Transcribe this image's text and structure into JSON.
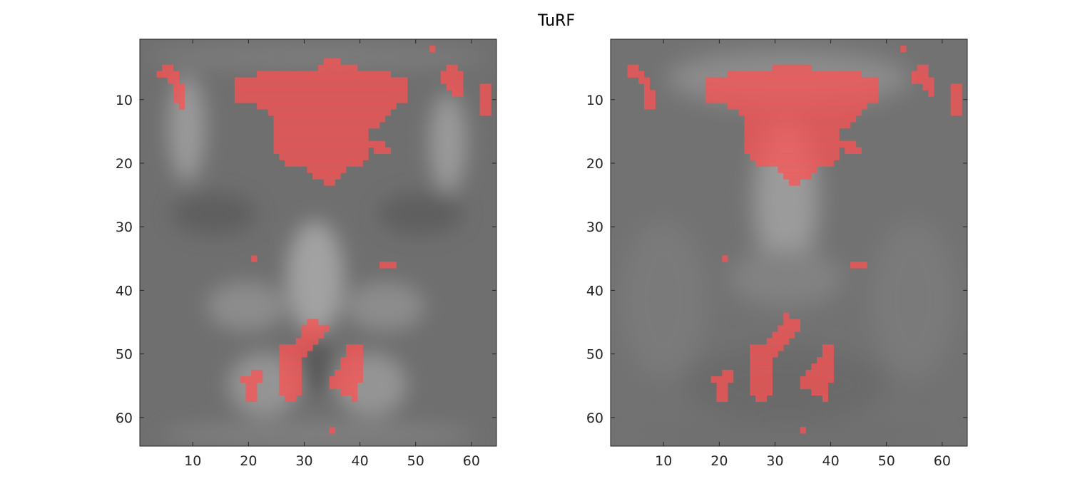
{
  "chart_data": {
    "title": "TuRF",
    "panels": [
      {
        "type": "heatmap",
        "xlim": [
          0.5,
          64.5
        ],
        "ylim": [
          0.5,
          64.5
        ],
        "xticks": [
          10,
          20,
          30,
          40,
          50,
          60
        ],
        "yticks": [
          10,
          20,
          30,
          40,
          50,
          60
        ],
        "y_direction": "reversed",
        "background": "grayscale anatomical slice",
        "overlay_color": "#ff5050",
        "overlay_regions": [
          {
            "name": "frontal",
            "rows": [
              [
                4,
                34,
                36
              ],
              [
                5,
                33,
                39
              ],
              [
                6,
                22,
                45
              ],
              [
                7,
                18,
                48
              ],
              [
                8,
                18,
                48
              ],
              [
                9,
                18,
                48
              ],
              [
                10,
                18,
                48
              ],
              [
                11,
                22,
                46
              ],
              [
                12,
                24,
                45
              ],
              [
                13,
                25,
                44
              ],
              [
                14,
                25,
                43
              ],
              [
                15,
                25,
                41
              ],
              [
                16,
                25,
                41
              ],
              [
                17,
                25,
                42
              ],
              [
                18,
                25,
                41
              ],
              [
                19,
                26,
                41
              ],
              [
                20,
                27,
                40
              ],
              [
                21,
                31,
                37
              ],
              [
                22,
                32,
                36
              ],
              [
                23,
                34,
                35
              ]
            ]
          },
          {
            "name": "top-left",
            "rows": [
              [
                5,
                5,
                6
              ],
              [
                6,
                4,
                7
              ],
              [
                7,
                6,
                7
              ],
              [
                8,
                7,
                8
              ],
              [
                9,
                7,
                8
              ],
              [
                10,
                7,
                8
              ],
              [
                11,
                8,
                8
              ]
            ]
          },
          {
            "name": "top-right",
            "rows": [
              [
                5,
                56,
                57
              ],
              [
                6,
                55,
                58
              ],
              [
                7,
                55,
                58
              ],
              [
                8,
                56,
                58
              ],
              [
                9,
                57,
                58
              ]
            ]
          },
          {
            "name": "right-edge",
            "rows": [
              [
                8,
                62,
                63
              ],
              [
                9,
                62,
                63
              ],
              [
                10,
                62,
                63
              ],
              [
                11,
                62,
                63
              ],
              [
                12,
                62,
                63
              ]
            ]
          },
          {
            "name": "top-dot",
            "rows": [
              [
                2,
                53,
                53
              ]
            ]
          },
          {
            "name": "side-blob",
            "rows": [
              [
                17,
                43,
                44
              ],
              [
                18,
                43,
                45
              ]
            ]
          },
          {
            "name": "mid-left-dot",
            "rows": [
              [
                35,
                21,
                21
              ]
            ]
          },
          {
            "name": "mid-right-dot",
            "rows": [
              [
                36,
                44,
                46
              ]
            ]
          },
          {
            "name": "occipital-left",
            "rows": [
              [
                45,
                31,
                32
              ],
              [
                46,
                30,
                34
              ],
              [
                47,
                30,
                33
              ],
              [
                48,
                29,
                32
              ],
              [
                49,
                26,
                31
              ],
              [
                50,
                26,
                30
              ],
              [
                51,
                26,
                29
              ],
              [
                52,
                26,
                29
              ],
              [
                53,
                26,
                29
              ],
              [
                54,
                26,
                29
              ],
              [
                55,
                26,
                29
              ],
              [
                56,
                26,
                29
              ],
              [
                57,
                27,
                28
              ]
            ]
          },
          {
            "name": "occipital-right",
            "rows": [
              [
                49,
                38,
                40
              ],
              [
                50,
                38,
                40
              ],
              [
                51,
                37,
                40
              ],
              [
                52,
                37,
                40
              ],
              [
                53,
                36,
                40
              ],
              [
                54,
                35,
                40
              ],
              [
                55,
                35,
                39
              ],
              [
                56,
                37,
                39
              ],
              [
                57,
                39,
                39
              ]
            ]
          },
          {
            "name": "lower-left",
            "rows": [
              [
                53,
                21,
                22
              ],
              [
                54,
                19,
                22
              ],
              [
                55,
                20,
                21
              ],
              [
                56,
                20,
                21
              ],
              [
                57,
                20,
                21
              ]
            ]
          },
          {
            "name": "bottom-dot",
            "rows": [
              [
                62,
                35,
                35
              ]
            ]
          }
        ]
      },
      {
        "type": "heatmap",
        "xlim": [
          0.5,
          64.5
        ],
        "ylim": [
          0.5,
          64.5
        ],
        "xticks": [
          10,
          20,
          30,
          40,
          50,
          60
        ],
        "yticks": [
          10,
          20,
          30,
          40,
          50,
          60
        ],
        "y_direction": "reversed",
        "background": "grayscale anatomical slice",
        "overlay_color": "#ff5050",
        "overlay_regions": [
          {
            "name": "frontal",
            "rows": [
              [
                5,
                30,
                36
              ],
              [
                6,
                22,
                45
              ],
              [
                7,
                18,
                48
              ],
              [
                8,
                18,
                48
              ],
              [
                9,
                18,
                48
              ],
              [
                10,
                18,
                48
              ],
              [
                11,
                22,
                46
              ],
              [
                12,
                24,
                45
              ],
              [
                13,
                25,
                44
              ],
              [
                14,
                25,
                43
              ],
              [
                15,
                25,
                41
              ],
              [
                16,
                25,
                41
              ],
              [
                17,
                25,
                42
              ],
              [
                18,
                25,
                41
              ],
              [
                19,
                26,
                41
              ],
              [
                20,
                27,
                40
              ],
              [
                21,
                31,
                37
              ],
              [
                22,
                32,
                36
              ],
              [
                23,
                33,
                34
              ]
            ]
          },
          {
            "name": "top-left",
            "rows": [
              [
                5,
                4,
                5
              ],
              [
                6,
                4,
                6
              ],
              [
                7,
                6,
                7
              ],
              [
                8,
                7,
                7
              ],
              [
                9,
                7,
                8
              ],
              [
                10,
                7,
                8
              ],
              [
                11,
                7,
                8
              ]
            ]
          },
          {
            "name": "top-right",
            "rows": [
              [
                5,
                56,
                57
              ],
              [
                6,
                55,
                57
              ],
              [
                7,
                55,
                58
              ],
              [
                8,
                57,
                58
              ],
              [
                9,
                58,
                58
              ]
            ]
          },
          {
            "name": "right-edge",
            "rows": [
              [
                8,
                62,
                63
              ],
              [
                9,
                62,
                63
              ],
              [
                10,
                62,
                63
              ],
              [
                11,
                62,
                63
              ],
              [
                12,
                62,
                63
              ]
            ]
          },
          {
            "name": "top-dot",
            "rows": [
              [
                2,
                53,
                53
              ]
            ]
          },
          {
            "name": "side-blob",
            "rows": [
              [
                17,
                43,
                44
              ],
              [
                18,
                43,
                45
              ]
            ]
          },
          {
            "name": "mid-left-dot",
            "rows": [
              [
                35,
                21,
                21
              ]
            ]
          },
          {
            "name": "mid-right-dot",
            "rows": [
              [
                36,
                44,
                46
              ]
            ]
          },
          {
            "name": "occipital-left",
            "rows": [
              [
                44,
                32,
                32
              ],
              [
                45,
                32,
                34
              ],
              [
                46,
                31,
                34
              ],
              [
                47,
                30,
                33
              ],
              [
                48,
                29,
                32
              ],
              [
                49,
                26,
                31
              ],
              [
                50,
                26,
                30
              ],
              [
                51,
                26,
                29
              ],
              [
                52,
                26,
                29
              ],
              [
                53,
                26,
                29
              ],
              [
                54,
                26,
                29
              ],
              [
                55,
                26,
                29
              ],
              [
                56,
                26,
                29
              ],
              [
                57,
                27,
                28
              ]
            ]
          },
          {
            "name": "occipital-right",
            "rows": [
              [
                49,
                39,
                40
              ],
              [
                50,
                39,
                40
              ],
              [
                51,
                38,
                40
              ],
              [
                52,
                37,
                40
              ],
              [
                53,
                36,
                40
              ],
              [
                54,
                35,
                40
              ],
              [
                55,
                35,
                39
              ],
              [
                56,
                37,
                39
              ],
              [
                57,
                39,
                39
              ]
            ]
          },
          {
            "name": "lower-left",
            "rows": [
              [
                53,
                21,
                22
              ],
              [
                54,
                19,
                22
              ],
              [
                55,
                20,
                21
              ],
              [
                56,
                20,
                21
              ],
              [
                57,
                20,
                21
              ]
            ]
          },
          {
            "name": "bottom-dot",
            "rows": [
              [
                62,
                35,
                35
              ]
            ]
          }
        ]
      }
    ]
  }
}
